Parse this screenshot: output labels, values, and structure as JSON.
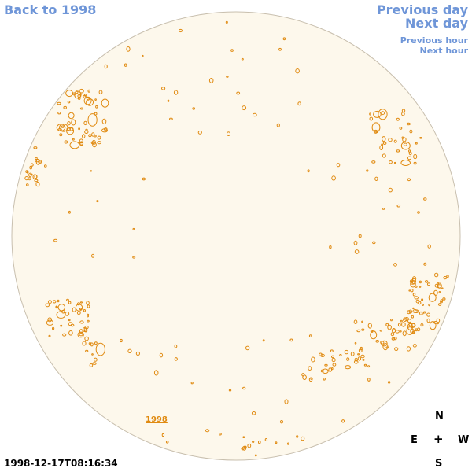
{
  "nav": {
    "back": "Back to 1998",
    "previous_day": "Previous day",
    "next_day": "Next day",
    "previous_hour": "Previous hour",
    "next_hour": "Next hour"
  },
  "disk": {
    "fill_color": "#fdf8ec",
    "rim_color": "#c8bfae",
    "contour_color": "#e08a10",
    "year_label": "1998"
  },
  "compass": {
    "north": "N",
    "south": "S",
    "east": "E",
    "west": "W",
    "center": "+"
  },
  "timestamp": "1998-12-17T08:16:34"
}
